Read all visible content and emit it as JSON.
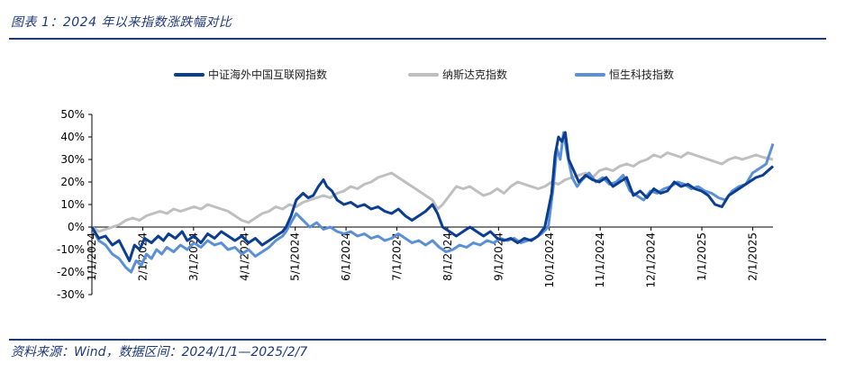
{
  "figure": {
    "title": "图表 1：2024 年以来指数涨跌幅对比",
    "source": "资料来源：Wind，数据区间：2024/1/1—2025/2/7"
  },
  "colors": {
    "accent": "#1f3a7a",
    "series_dark": "#0b3d91",
    "series_gray": "#bfbfbf",
    "series_light": "#5b8fd6"
  },
  "chart_data": {
    "type": "line",
    "title": "",
    "xlabel": "",
    "ylabel": "",
    "ylim": [
      -30,
      50
    ],
    "y_ticks": [
      "50%",
      "40%",
      "30%",
      "20%",
      "10%",
      "0%",
      "-10%",
      "-20%",
      "-30%"
    ],
    "x_ticks": [
      "1/1/2024",
      "2/1/2024",
      "3/1/2024",
      "4/1/2024",
      "5/1/2024",
      "6/1/2024",
      "7/1/2024",
      "8/1/2024",
      "9/1/2024",
      "10/1/2024",
      "11/1/2024",
      "12/1/2024",
      "1/1/2025",
      "2/1/2025"
    ],
    "legend_position": "top",
    "grid": false,
    "series": [
      {
        "name": "中证海外中国互联网指数",
        "color": "#0b3d91",
        "points": [
          [
            0,
            0
          ],
          [
            4,
            -5
          ],
          [
            8,
            -4
          ],
          [
            12,
            -8
          ],
          [
            16,
            -6
          ],
          [
            20,
            -12
          ],
          [
            22,
            -15
          ],
          [
            25,
            -8
          ],
          [
            28,
            -10
          ],
          [
            31,
            -5
          ],
          [
            35,
            -7
          ],
          [
            39,
            -4
          ],
          [
            42,
            -6
          ],
          [
            45,
            -3
          ],
          [
            49,
            -5
          ],
          [
            53,
            -2
          ],
          [
            56,
            -6
          ],
          [
            60,
            -4
          ],
          [
            64,
            -7
          ],
          [
            68,
            -3
          ],
          [
            72,
            -5
          ],
          [
            76,
            -2
          ],
          [
            80,
            -4
          ],
          [
            84,
            -6
          ],
          [
            88,
            -4
          ],
          [
            92,
            -7
          ],
          [
            96,
            -5
          ],
          [
            100,
            -8
          ],
          [
            104,
            -6
          ],
          [
            108,
            -4
          ],
          [
            112,
            -2
          ],
          [
            114,
            0
          ],
          [
            117,
            5
          ],
          [
            120,
            12
          ],
          [
            124,
            15
          ],
          [
            127,
            13
          ],
          [
            130,
            14
          ],
          [
            133,
            18
          ],
          [
            136,
            21
          ],
          [
            138,
            18
          ],
          [
            141,
            16
          ],
          [
            144,
            12
          ],
          [
            148,
            10
          ],
          [
            152,
            11
          ],
          [
            156,
            9
          ],
          [
            160,
            10
          ],
          [
            164,
            8
          ],
          [
            168,
            9
          ],
          [
            172,
            7
          ],
          [
            176,
            6
          ],
          [
            180,
            8
          ],
          [
            184,
            5
          ],
          [
            188,
            3
          ],
          [
            192,
            5
          ],
          [
            196,
            7
          ],
          [
            200,
            10
          ],
          [
            203,
            6
          ],
          [
            206,
            0
          ],
          [
            210,
            -2
          ],
          [
            214,
            -4
          ],
          [
            218,
            -2
          ],
          [
            222,
            0
          ],
          [
            226,
            -2
          ],
          [
            230,
            -4
          ],
          [
            234,
            -2
          ],
          [
            238,
            -5
          ],
          [
            242,
            -6
          ],
          [
            246,
            -5
          ],
          [
            250,
            -7
          ],
          [
            254,
            -5
          ],
          [
            258,
            -6
          ],
          [
            262,
            -4
          ],
          [
            266,
            0
          ],
          [
            270,
            15
          ],
          [
            272,
            32
          ],
          [
            274,
            40
          ],
          [
            276,
            38
          ],
          [
            278,
            42
          ],
          [
            280,
            30
          ],
          [
            283,
            25
          ],
          [
            286,
            20
          ],
          [
            290,
            23
          ],
          [
            294,
            21
          ],
          [
            298,
            20
          ],
          [
            302,
            22
          ],
          [
            306,
            18
          ],
          [
            310,
            20
          ],
          [
            314,
            22
          ],
          [
            318,
            14
          ],
          [
            322,
            16
          ],
          [
            326,
            13
          ],
          [
            330,
            17
          ],
          [
            334,
            15
          ],
          [
            338,
            16
          ],
          [
            342,
            20
          ],
          [
            346,
            18
          ],
          [
            350,
            19
          ],
          [
            354,
            17
          ],
          [
            358,
            16
          ],
          [
            362,
            14
          ],
          [
            366,
            10
          ],
          [
            370,
            9
          ],
          [
            374,
            14
          ],
          [
            378,
            16
          ],
          [
            382,
            18
          ],
          [
            386,
            20
          ],
          [
            390,
            22
          ],
          [
            394,
            23
          ],
          [
            400,
            27
          ]
        ]
      },
      {
        "name": "纳斯达克指数",
        "color": "#bfbfbf",
        "points": [
          [
            0,
            0
          ],
          [
            4,
            -2
          ],
          [
            8,
            -1
          ],
          [
            12,
            0
          ],
          [
            16,
            1
          ],
          [
            20,
            3
          ],
          [
            24,
            4
          ],
          [
            28,
            3
          ],
          [
            32,
            5
          ],
          [
            36,
            6
          ],
          [
            40,
            7
          ],
          [
            44,
            6
          ],
          [
            48,
            8
          ],
          [
            52,
            7
          ],
          [
            56,
            8
          ],
          [
            60,
            9
          ],
          [
            64,
            8
          ],
          [
            68,
            10
          ],
          [
            72,
            9
          ],
          [
            76,
            8
          ],
          [
            80,
            7
          ],
          [
            84,
            5
          ],
          [
            88,
            3
          ],
          [
            92,
            2
          ],
          [
            96,
            4
          ],
          [
            100,
            6
          ],
          [
            104,
            7
          ],
          [
            108,
            9
          ],
          [
            112,
            8
          ],
          [
            116,
            10
          ],
          [
            120,
            9
          ],
          [
            124,
            11
          ],
          [
            128,
            12
          ],
          [
            132,
            13
          ],
          [
            136,
            14
          ],
          [
            140,
            13
          ],
          [
            144,
            15
          ],
          [
            148,
            16
          ],
          [
            152,
            18
          ],
          [
            156,
            17
          ],
          [
            160,
            19
          ],
          [
            164,
            20
          ],
          [
            168,
            22
          ],
          [
            172,
            23
          ],
          [
            176,
            24
          ],
          [
            180,
            22
          ],
          [
            184,
            20
          ],
          [
            188,
            18
          ],
          [
            192,
            16
          ],
          [
            196,
            14
          ],
          [
            200,
            12
          ],
          [
            203,
            8
          ],
          [
            206,
            10
          ],
          [
            210,
            14
          ],
          [
            214,
            18
          ],
          [
            218,
            17
          ],
          [
            222,
            18
          ],
          [
            226,
            16
          ],
          [
            230,
            14
          ],
          [
            234,
            15
          ],
          [
            238,
            17
          ],
          [
            242,
            15
          ],
          [
            246,
            18
          ],
          [
            250,
            20
          ],
          [
            254,
            19
          ],
          [
            258,
            18
          ],
          [
            262,
            17
          ],
          [
            266,
            18
          ],
          [
            270,
            20
          ],
          [
            274,
            19
          ],
          [
            278,
            21
          ],
          [
            282,
            22
          ],
          [
            286,
            23
          ],
          [
            290,
            24
          ],
          [
            294,
            22
          ],
          [
            298,
            25
          ],
          [
            302,
            26
          ],
          [
            306,
            25
          ],
          [
            310,
            27
          ],
          [
            314,
            28
          ],
          [
            318,
            27
          ],
          [
            322,
            29
          ],
          [
            326,
            30
          ],
          [
            330,
            32
          ],
          [
            334,
            31
          ],
          [
            338,
            33
          ],
          [
            342,
            32
          ],
          [
            346,
            31
          ],
          [
            350,
            33
          ],
          [
            354,
            32
          ],
          [
            358,
            31
          ],
          [
            362,
            30
          ],
          [
            366,
            29
          ],
          [
            370,
            28
          ],
          [
            374,
            30
          ],
          [
            378,
            31
          ],
          [
            382,
            30
          ],
          [
            386,
            31
          ],
          [
            390,
            32
          ],
          [
            394,
            31
          ],
          [
            400,
            30
          ]
        ]
      },
      {
        "name": "恒生科技指数",
        "color": "#5b8fd6",
        "points": [
          [
            0,
            0
          ],
          [
            4,
            -6
          ],
          [
            8,
            -8
          ],
          [
            12,
            -12
          ],
          [
            16,
            -14
          ],
          [
            20,
            -18
          ],
          [
            23,
            -20
          ],
          [
            26,
            -15
          ],
          [
            29,
            -17
          ],
          [
            32,
            -12
          ],
          [
            35,
            -14
          ],
          [
            38,
            -10
          ],
          [
            41,
            -12
          ],
          [
            44,
            -9
          ],
          [
            48,
            -11
          ],
          [
            52,
            -8
          ],
          [
            56,
            -10
          ],
          [
            60,
            -7
          ],
          [
            64,
            -9
          ],
          [
            68,
            -6
          ],
          [
            72,
            -8
          ],
          [
            76,
            -7
          ],
          [
            80,
            -10
          ],
          [
            84,
            -9
          ],
          [
            88,
            -12
          ],
          [
            92,
            -10
          ],
          [
            96,
            -13
          ],
          [
            100,
            -11
          ],
          [
            104,
            -9
          ],
          [
            108,
            -6
          ],
          [
            112,
            -4
          ],
          [
            114,
            -2
          ],
          [
            117,
            2
          ],
          [
            120,
            6
          ],
          [
            124,
            3
          ],
          [
            128,
            0
          ],
          [
            132,
            2
          ],
          [
            136,
            -1
          ],
          [
            140,
            0
          ],
          [
            144,
            -2
          ],
          [
            148,
            -3
          ],
          [
            152,
            -2
          ],
          [
            156,
            -4
          ],
          [
            160,
            -3
          ],
          [
            164,
            -5
          ],
          [
            168,
            -4
          ],
          [
            172,
            -6
          ],
          [
            176,
            -5
          ],
          [
            180,
            -3
          ],
          [
            184,
            -5
          ],
          [
            188,
            -7
          ],
          [
            192,
            -6
          ],
          [
            196,
            -8
          ],
          [
            200,
            -6
          ],
          [
            204,
            -9
          ],
          [
            208,
            -11
          ],
          [
            212,
            -10
          ],
          [
            216,
            -8
          ],
          [
            220,
            -9
          ],
          [
            224,
            -7
          ],
          [
            228,
            -8
          ],
          [
            232,
            -6
          ],
          [
            236,
            -7
          ],
          [
            240,
            -5
          ],
          [
            244,
            -6
          ],
          [
            248,
            -5
          ],
          [
            252,
            -7
          ],
          [
            256,
            -6
          ],
          [
            260,
            -5
          ],
          [
            264,
            -3
          ],
          [
            268,
            0
          ],
          [
            271,
            18
          ],
          [
            273,
            35
          ],
          [
            275,
            30
          ],
          [
            277,
            42
          ],
          [
            279,
            33
          ],
          [
            282,
            22
          ],
          [
            285,
            18
          ],
          [
            288,
            21
          ],
          [
            292,
            24
          ],
          [
            296,
            20
          ],
          [
            300,
            22
          ],
          [
            304,
            19
          ],
          [
            308,
            20
          ],
          [
            312,
            23
          ],
          [
            316,
            16
          ],
          [
            320,
            14
          ],
          [
            324,
            12
          ],
          [
            328,
            16
          ],
          [
            332,
            15
          ],
          [
            336,
            17
          ],
          [
            340,
            18
          ],
          [
            344,
            20
          ],
          [
            348,
            19
          ],
          [
            352,
            17
          ],
          [
            356,
            18
          ],
          [
            360,
            16
          ],
          [
            364,
            15
          ],
          [
            368,
            13
          ],
          [
            372,
            12
          ],
          [
            376,
            16
          ],
          [
            380,
            18
          ],
          [
            384,
            19
          ],
          [
            388,
            24
          ],
          [
            392,
            26
          ],
          [
            396,
            28
          ],
          [
            400,
            37
          ]
        ]
      }
    ]
  }
}
